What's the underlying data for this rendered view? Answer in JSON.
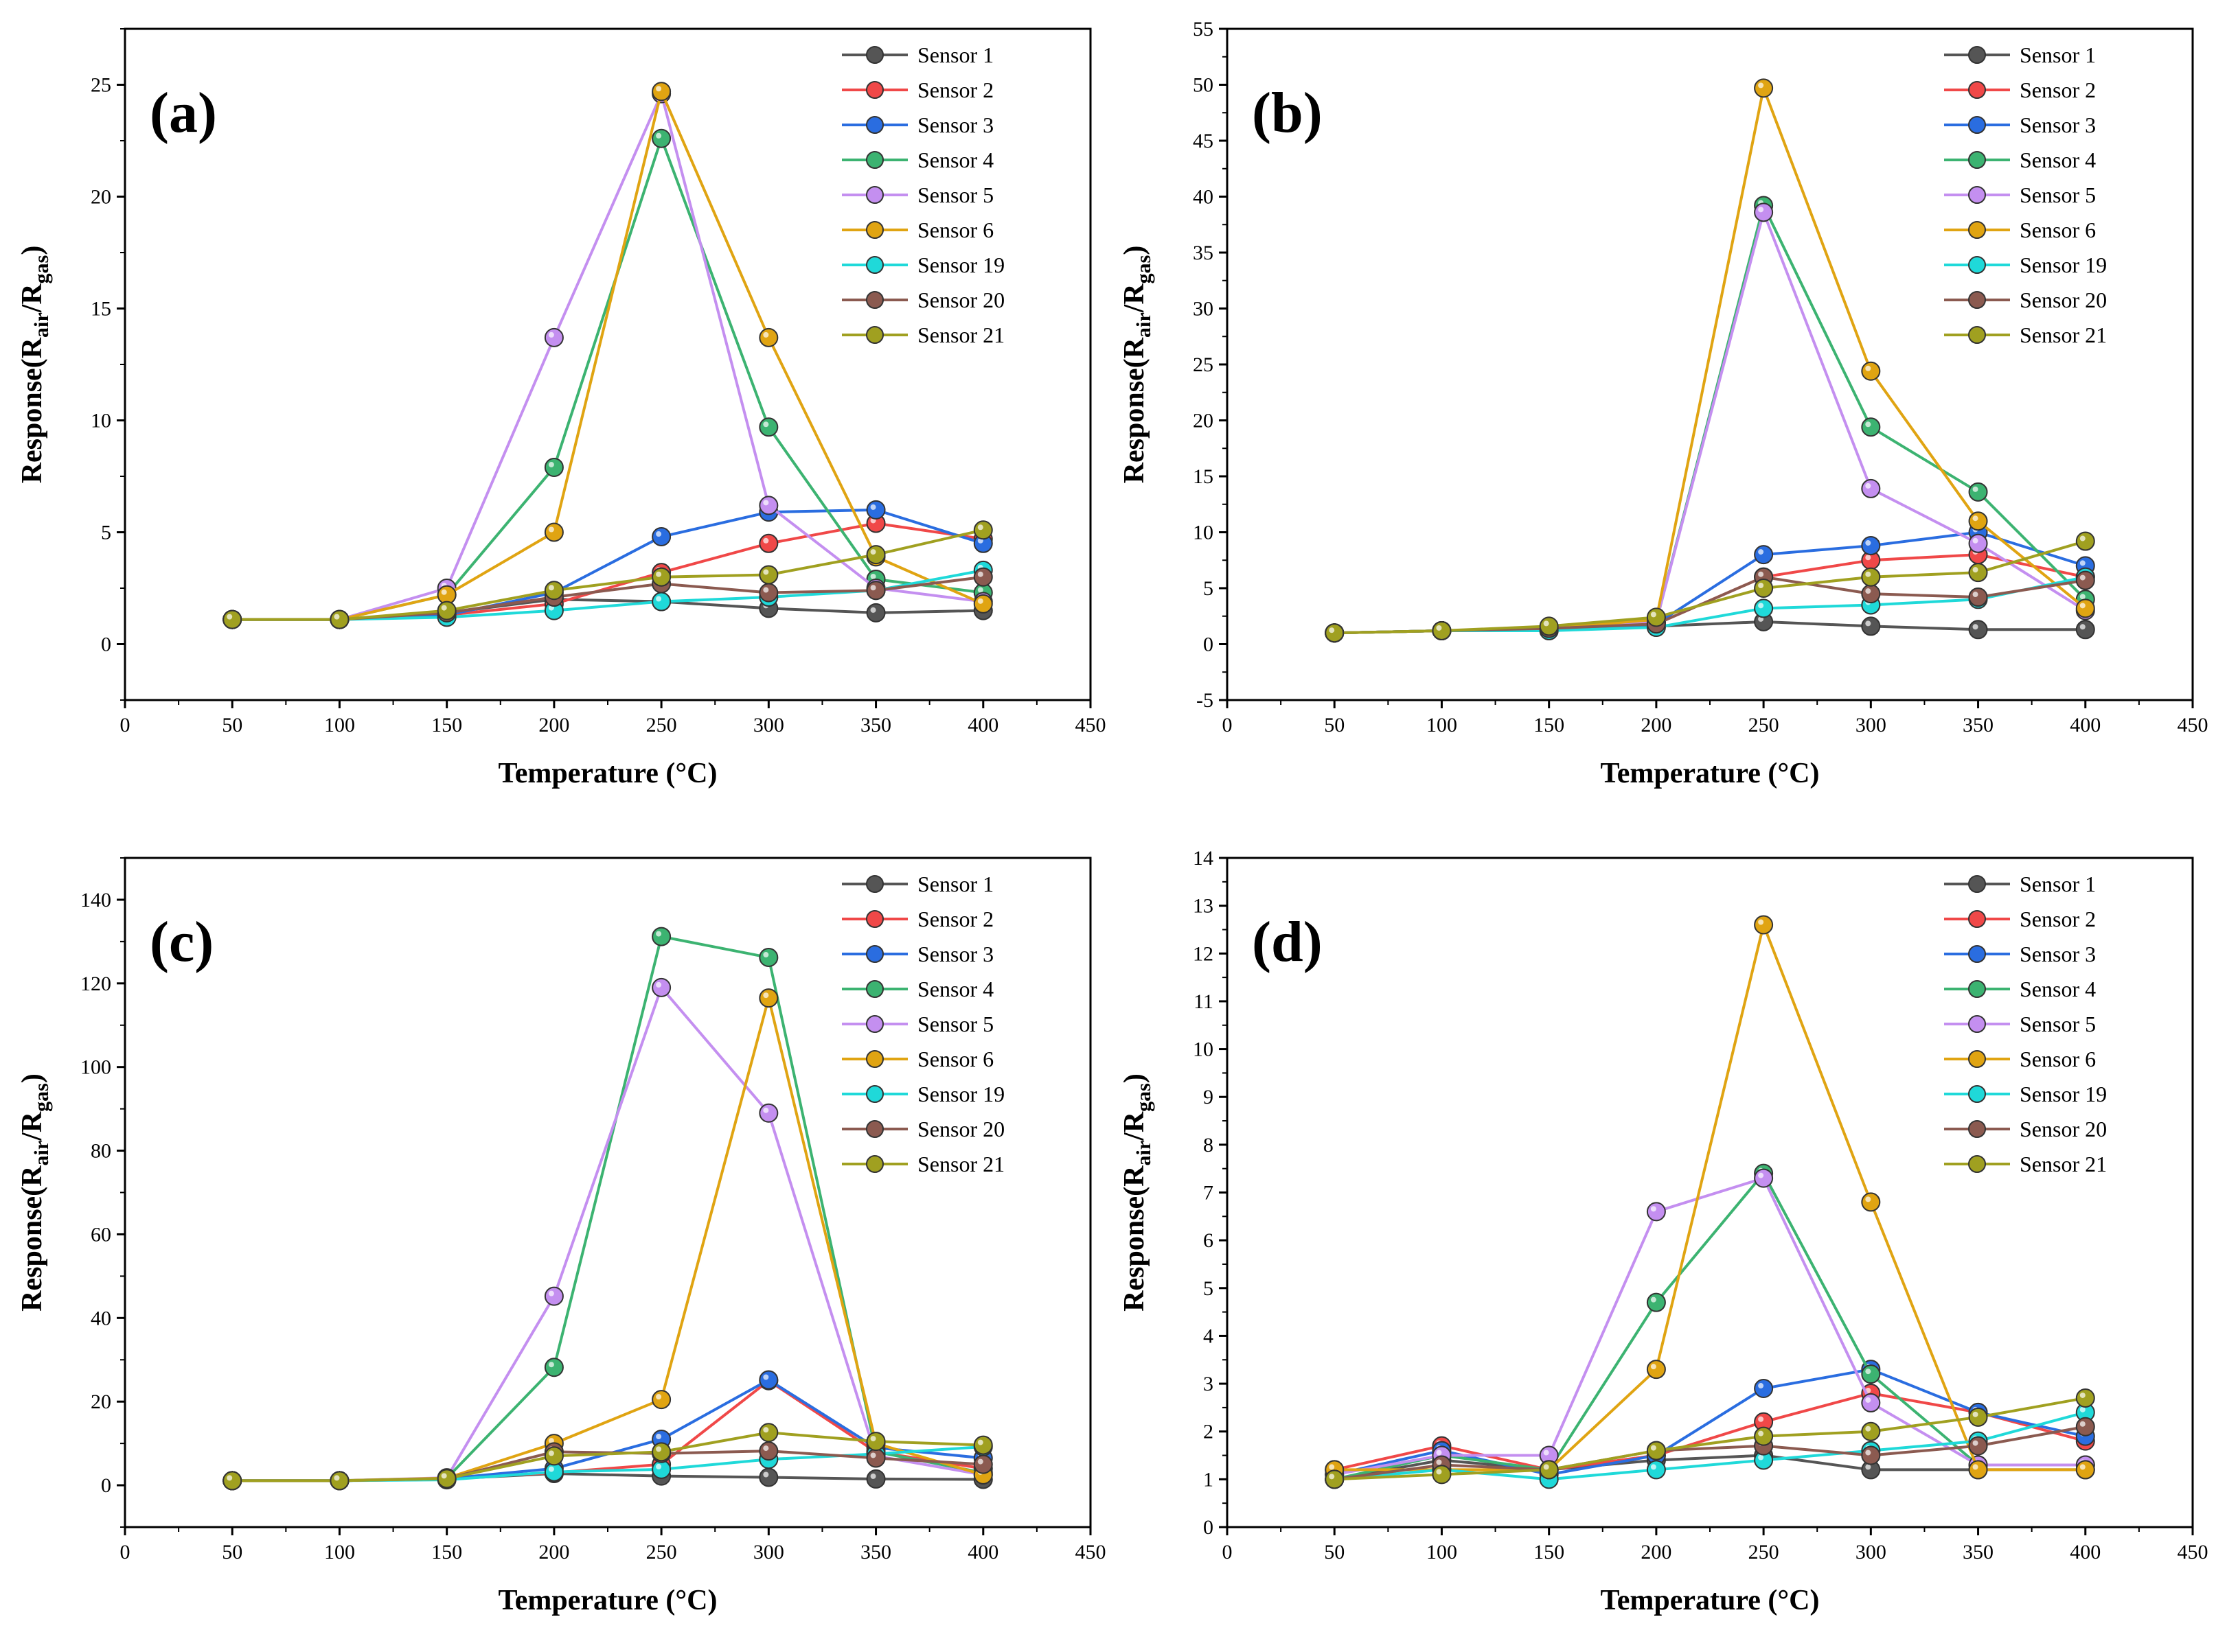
{
  "figure": {
    "xlabel": "Temperature (°C)",
    "ylabel_main": "Response(R",
    "ylabel_sub1": "air",
    "ylabel_mid": "/R",
    "ylabel_sub2": "gas",
    "ylabel_end": ")"
  },
  "series_meta": [
    {
      "name": "Sensor 1",
      "color": "#555555"
    },
    {
      "name": "Sensor 2",
      "color": "#f04848"
    },
    {
      "name": "Sensor 3",
      "color": "#2a6de0"
    },
    {
      "name": "Sensor 4",
      "color": "#3cb371"
    },
    {
      "name": "Sensor 5",
      "color": "#c48ff0"
    },
    {
      "name": "Sensor 6",
      "color": "#e0a412"
    },
    {
      "name": "Sensor 19",
      "color": "#1fd9d9"
    },
    {
      "name": "Sensor 20",
      "color": "#8b5a50"
    },
    {
      "name": "Sensor 21",
      "color": "#a0a020"
    }
  ],
  "chart_data": [
    {
      "type": "line",
      "panel": "(a)",
      "xlabel": "Temperature (°C)",
      "ylabel": "Response(Rair/Rgas)",
      "xlim": [
        0,
        450
      ],
      "ylim": [
        -2.5,
        27.5
      ],
      "xticks": [
        0,
        50,
        100,
        150,
        200,
        250,
        300,
        350,
        400,
        450
      ],
      "yticks": [
        0,
        5,
        10,
        15,
        20,
        25
      ],
      "x": [
        50,
        100,
        150,
        200,
        250,
        300,
        350,
        400
      ],
      "series": [
        {
          "name": "Sensor 1",
          "values": [
            1.1,
            1.1,
            1.4,
            2.0,
            1.9,
            1.6,
            1.4,
            1.5
          ]
        },
        {
          "name": "Sensor 2",
          "values": [
            1.1,
            1.1,
            1.3,
            1.8,
            3.2,
            4.5,
            5.4,
            4.7
          ]
        },
        {
          "name": "Sensor 3",
          "values": [
            1.1,
            1.1,
            1.3,
            2.3,
            4.8,
            5.9,
            6.0,
            4.5
          ]
        },
        {
          "name": "Sensor 4",
          "values": [
            1.1,
            1.1,
            2.2,
            7.9,
            22.6,
            9.7,
            2.9,
            2.3
          ]
        },
        {
          "name": "Sensor 5",
          "values": [
            1.1,
            1.1,
            2.5,
            13.7,
            24.6,
            6.2,
            2.5,
            1.9
          ]
        },
        {
          "name": "Sensor 6",
          "values": [
            1.1,
            1.1,
            2.2,
            5.0,
            24.7,
            13.7,
            3.9,
            1.8
          ]
        },
        {
          "name": "Sensor 19",
          "values": [
            1.1,
            1.1,
            1.2,
            1.5,
            1.9,
            2.1,
            2.4,
            3.3
          ]
        },
        {
          "name": "Sensor 20",
          "values": [
            1.1,
            1.1,
            1.4,
            2.1,
            2.7,
            2.3,
            2.4,
            3.0
          ]
        },
        {
          "name": "Sensor 21",
          "values": [
            1.1,
            1.1,
            1.5,
            2.4,
            3.0,
            3.1,
            4.0,
            5.1
          ]
        }
      ]
    },
    {
      "type": "line",
      "panel": "(b)",
      "xlabel": "Temperature (°C)",
      "ylabel": "Response(Rair/Rgas)",
      "xlim": [
        0,
        450
      ],
      "ylim": [
        -5,
        55
      ],
      "xticks": [
        0,
        50,
        100,
        150,
        200,
        250,
        300,
        350,
        400,
        450
      ],
      "yticks": [
        -5,
        0,
        5,
        10,
        15,
        20,
        25,
        30,
        35,
        40,
        45,
        50,
        55
      ],
      "x": [
        50,
        100,
        150,
        200,
        250,
        300,
        350,
        400
      ],
      "series": [
        {
          "name": "Sensor 1",
          "values": [
            1.0,
            1.2,
            1.3,
            1.6,
            2.0,
            1.6,
            1.3,
            1.3
          ]
        },
        {
          "name": "Sensor 2",
          "values": [
            1.0,
            1.2,
            1.3,
            1.8,
            6.0,
            7.5,
            8.0,
            6.0
          ]
        },
        {
          "name": "Sensor 3",
          "values": [
            1.0,
            1.2,
            1.2,
            1.8,
            8.0,
            8.8,
            10.0,
            7.0
          ]
        },
        {
          "name": "Sensor 4",
          "values": [
            1.0,
            1.2,
            1.4,
            2.0,
            39.2,
            19.4,
            13.6,
            4.0
          ]
        },
        {
          "name": "Sensor 5",
          "values": [
            1.0,
            1.2,
            1.4,
            2.0,
            38.6,
            13.9,
            9.0,
            3.0
          ]
        },
        {
          "name": "Sensor 6",
          "values": [
            1.0,
            1.2,
            1.4,
            2.2,
            49.7,
            24.4,
            11.0,
            3.2
          ]
        },
        {
          "name": "Sensor 19",
          "values": [
            1.0,
            1.2,
            1.2,
            1.5,
            3.2,
            3.5,
            4.0,
            6.0
          ]
        },
        {
          "name": "Sensor 20",
          "values": [
            1.0,
            1.2,
            1.4,
            1.8,
            6.0,
            4.5,
            4.2,
            5.7
          ]
        },
        {
          "name": "Sensor 21",
          "values": [
            1.0,
            1.2,
            1.6,
            2.4,
            5.0,
            6.0,
            6.4,
            9.2
          ]
        }
      ]
    },
    {
      "type": "line",
      "panel": "(c)",
      "xlabel": "Temperature (°C)",
      "ylabel": "Response(Rair/Rgas)",
      "xlim": [
        0,
        450
      ],
      "ylim": [
        -10,
        150
      ],
      "xticks": [
        0,
        50,
        100,
        150,
        200,
        250,
        300,
        350,
        400,
        450
      ],
      "yticks": [
        0,
        20,
        40,
        60,
        80,
        100,
        120,
        140
      ],
      "x": [
        50,
        100,
        150,
        200,
        250,
        300,
        350,
        400
      ],
      "series": [
        {
          "name": "Sensor 1",
          "values": [
            1.1,
            1.1,
            1.5,
            2.8,
            2.2,
            1.9,
            1.5,
            1.4
          ]
        },
        {
          "name": "Sensor 2",
          "values": [
            1.1,
            1.1,
            1.6,
            3.0,
            5.0,
            25.0,
            8.0,
            4.0
          ]
        },
        {
          "name": "Sensor 3",
          "values": [
            1.1,
            1.1,
            1.6,
            4.0,
            11.0,
            25.2,
            9.0,
            6.5
          ]
        },
        {
          "name": "Sensor 4",
          "values": [
            1.1,
            1.1,
            1.7,
            28.2,
            131.2,
            126.2,
            8.0,
            3.0
          ]
        },
        {
          "name": "Sensor 5",
          "values": [
            1.1,
            1.1,
            1.8,
            45.2,
            119.0,
            89.0,
            7.0,
            2.5
          ]
        },
        {
          "name": "Sensor 6",
          "values": [
            1.1,
            1.1,
            1.7,
            10.0,
            20.5,
            116.5,
            10.0,
            2.5
          ]
        },
        {
          "name": "Sensor 19",
          "values": [
            1.1,
            1.1,
            1.3,
            3.2,
            3.8,
            6.2,
            7.5,
            9.2
          ]
        },
        {
          "name": "Sensor 20",
          "values": [
            1.1,
            1.1,
            1.6,
            8.0,
            7.6,
            8.2,
            6.5,
            5.0
          ]
        },
        {
          "name": "Sensor 21",
          "values": [
            1.1,
            1.1,
            1.6,
            7.0,
            8.0,
            12.6,
            10.5,
            9.6
          ]
        }
      ]
    },
    {
      "type": "line",
      "panel": "(d)",
      "xlabel": "Temperature (°C)",
      "ylabel": "Response(Rair/Rgas)",
      "xlim": [
        0,
        450
      ],
      "ylim": [
        0,
        14
      ],
      "xticks": [
        0,
        50,
        100,
        150,
        200,
        250,
        300,
        350,
        400,
        450
      ],
      "yticks": [
        0,
        1,
        2,
        3,
        4,
        5,
        6,
        7,
        8,
        9,
        10,
        11,
        12,
        13,
        14
      ],
      "x": [
        50,
        100,
        150,
        200,
        250,
        300,
        350,
        400
      ],
      "series": [
        {
          "name": "Sensor 1",
          "values": [
            1.0,
            1.4,
            1.2,
            1.4,
            1.5,
            1.2,
            1.2,
            1.2
          ]
        },
        {
          "name": "Sensor 2",
          "values": [
            1.2,
            1.7,
            1.2,
            1.5,
            2.2,
            2.8,
            2.4,
            1.8
          ]
        },
        {
          "name": "Sensor 3",
          "values": [
            1.1,
            1.6,
            1.1,
            1.5,
            2.9,
            3.3,
            2.4,
            1.9
          ]
        },
        {
          "name": "Sensor 4",
          "values": [
            1.0,
            1.5,
            1.2,
            4.7,
            7.4,
            3.2,
            1.3,
            1.3
          ]
        },
        {
          "name": "Sensor 5",
          "values": [
            1.1,
            1.5,
            1.5,
            6.6,
            7.3,
            2.6,
            1.3,
            1.3
          ]
        },
        {
          "name": "Sensor 6",
          "values": [
            1.2,
            1.2,
            1.2,
            3.3,
            12.6,
            6.8,
            1.2,
            1.2
          ]
        },
        {
          "name": "Sensor 19",
          "values": [
            1.0,
            1.2,
            1.0,
            1.2,
            1.4,
            1.6,
            1.8,
            2.4
          ]
        },
        {
          "name": "Sensor 20",
          "values": [
            1.0,
            1.3,
            1.2,
            1.6,
            1.7,
            1.5,
            1.7,
            2.1
          ]
        },
        {
          "name": "Sensor 21",
          "values": [
            1.0,
            1.1,
            1.2,
            1.6,
            1.9,
            2.0,
            2.3,
            2.7
          ]
        }
      ]
    }
  ]
}
